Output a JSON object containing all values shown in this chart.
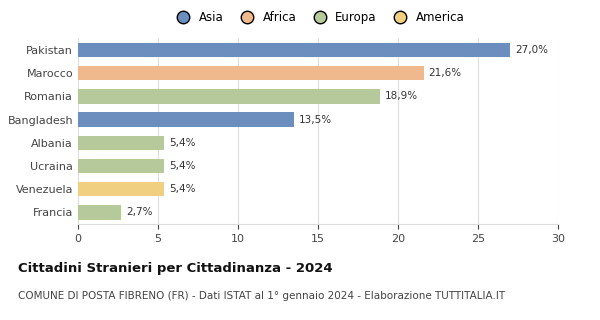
{
  "categories": [
    "Pakistan",
    "Marocco",
    "Romania",
    "Bangladesh",
    "Albania",
    "Ucraina",
    "Venezuela",
    "Francia"
  ],
  "values": [
    27.0,
    21.6,
    18.9,
    13.5,
    5.4,
    5.4,
    5.4,
    2.7
  ],
  "labels": [
    "27,0%",
    "21,6%",
    "18,9%",
    "13,5%",
    "5,4%",
    "5,4%",
    "5,4%",
    "2,7%"
  ],
  "colors": [
    "#6c8ebf",
    "#f0b98d",
    "#b5c99a",
    "#6c8ebf",
    "#b5c99a",
    "#b5c99a",
    "#f0d080",
    "#b5c99a"
  ],
  "legend_labels": [
    "Asia",
    "Africa",
    "Europa",
    "America"
  ],
  "legend_colors": [
    "#6c8ebf",
    "#f0b98d",
    "#b5c99a",
    "#f0d080"
  ],
  "title": "Cittadini Stranieri per Cittadinanza - 2024",
  "subtitle": "COMUNE DI POSTA FIBRENO (FR) - Dati ISTAT al 1° gennaio 2024 - Elaborazione TUTTITALIA.IT",
  "xlim": [
    0,
    30
  ],
  "xticks": [
    0,
    5,
    10,
    15,
    20,
    25,
    30
  ],
  "background_color": "#ffffff",
  "bar_height": 0.62,
  "grid_color": "#dddddd",
  "title_fontsize": 9.5,
  "subtitle_fontsize": 7.5,
  "label_fontsize": 7.5,
  "tick_fontsize": 8,
  "legend_fontsize": 8.5
}
